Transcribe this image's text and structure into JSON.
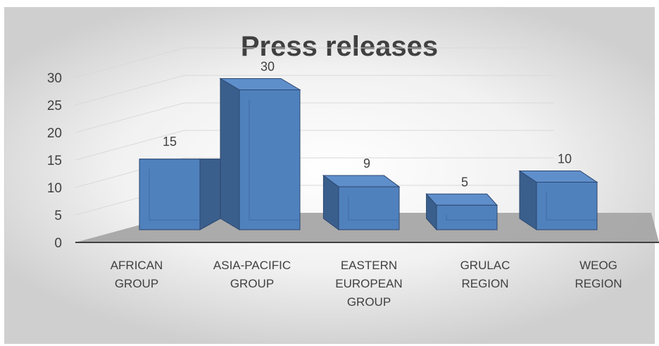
{
  "chart_data": {
    "type": "bar",
    "style": "3d-column",
    "title": "Press releases",
    "categories": [
      [
        "AFRICAN",
        "GROUP"
      ],
      [
        "ASIA-PACIFIC",
        "GROUP"
      ],
      [
        "EASTERN",
        "EUROPEAN",
        "GROUP"
      ],
      [
        "GRULAC",
        "REGION"
      ],
      [
        "WEOG",
        "REGION"
      ]
    ],
    "values": [
      15,
      30,
      9,
      5,
      10
    ],
    "ylim": [
      0,
      30
    ],
    "yticks": [
      "0",
      "5",
      "10",
      "15",
      "20",
      "25",
      "30"
    ],
    "grid": true,
    "legend": "none",
    "colors": {
      "bar_front": "#4f81bd",
      "bar_side": "#3a5f8c",
      "bar_top": "#5f8fcb",
      "floor": "#a6a6a6",
      "text": "#404040"
    }
  }
}
